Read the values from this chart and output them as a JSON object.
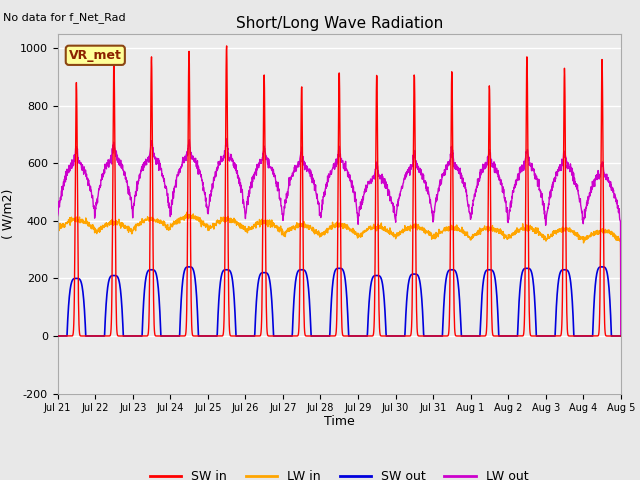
{
  "title": "Short/Long Wave Radiation",
  "top_left_text": "No data for f_Net_Rad",
  "legend_box_label": "VR_met",
  "ylabel": "( W/m2)",
  "xlabel": "Time",
  "ylim": [
    -200,
    1050
  ],
  "yticks": [
    -200,
    0,
    200,
    400,
    600,
    800,
    1000
  ],
  "xtick_labels": [
    "Jul 21",
    "Jul 22",
    "Jul 23",
    "Jul 24",
    "Jul 25",
    "Jul 26",
    "Jul 27",
    "Jul 28",
    "Jul 29",
    "Jul 30",
    "Jul 31",
    "Aug 1",
    "Aug 2",
    "Aug 3",
    "Aug 4",
    "Aug 5"
  ],
  "colors": {
    "SW_in": "#ff0000",
    "LW_in": "#ffa500",
    "SW_out": "#0000dd",
    "LW_out": "#cc00cc"
  },
  "legend_labels": [
    "SW in",
    "LW in",
    "SW out",
    "LW out"
  ],
  "background_color": "#e8e8e8",
  "plot_bg_color": "#ebebeb",
  "n_days": 15,
  "points_per_day": 144
}
